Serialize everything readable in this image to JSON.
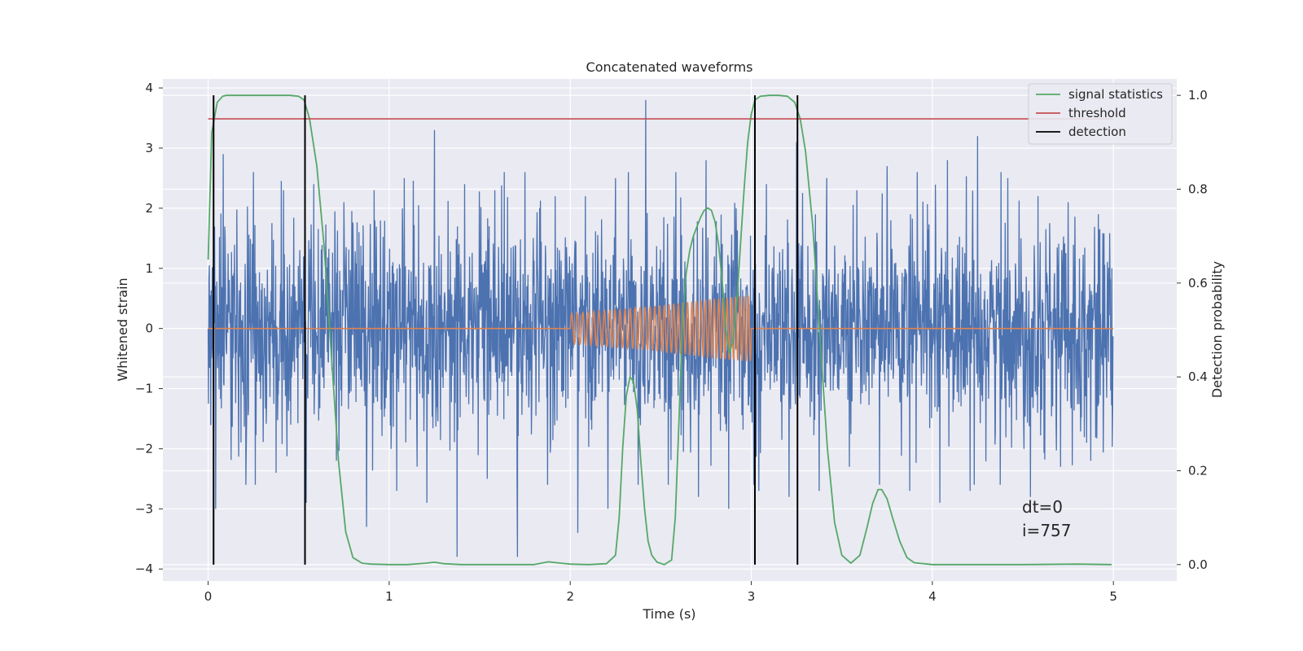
{
  "chart_data": {
    "type": "line",
    "title": "Concatenated waveforms",
    "xlabel": "Time (s)",
    "ylabel": "Whitened strain",
    "y2label": "Detection probability",
    "xlim": [
      -0.25,
      5.35
    ],
    "ylim": [
      -4.2,
      4.15
    ],
    "y2lim": [
      -0.035,
      1.035
    ],
    "x_ticks": [
      0,
      1,
      2,
      3,
      4,
      5
    ],
    "y_ticks": [
      -4,
      -3,
      -2,
      -1,
      0,
      1,
      2,
      3,
      4
    ],
    "y2_ticks": [
      0.0,
      0.2,
      0.4,
      0.6,
      0.8,
      1.0
    ],
    "y2_tick_labels": [
      "0.0",
      "0.2",
      "0.4",
      "0.6",
      "0.8",
      "1.0"
    ],
    "grid": true,
    "legend_position": "top-right",
    "series": [
      {
        "role": "strain",
        "color": "#4c72b0",
        "note": "whitened noise, time 0 to 5 s, amplitude roughly -3.5 to 3.8",
        "x_range": [
          0,
          5
        ],
        "peak_values": [
          2.9,
          2.6,
          2.3,
          2.4,
          2.1,
          2.3,
          2.5,
          3.3,
          2.4,
          2.3,
          2.6,
          2.2,
          2.2,
          2.5,
          3.8,
          2.6,
          2.8,
          2.0,
          2.4,
          3.1,
          2.5,
          2.3,
          2.7,
          2.6,
          2.8,
          3.2,
          2.5,
          2.2,
          2.1,
          1.9
        ],
        "trough_values": [
          -3.0,
          -2.6,
          -2.4,
          -2.9,
          -2.2,
          -3.3,
          -2.7,
          -2.9,
          -3.8,
          -2.5,
          -3.8,
          -2.6,
          -3.4,
          -3.0,
          -2.6,
          -2.6,
          -2.8,
          -3.0,
          -2.7,
          -2.8,
          -2.7,
          -2.3,
          -2.6,
          -2.7,
          -2.9,
          -2.7,
          -2.6,
          -2.8,
          -2.3,
          -2.2
        ]
      },
      {
        "role": "injected-signal",
        "color": "#dd8452",
        "note": "chirp between 2.0 and 3.0 s, zero elsewhere",
        "x": [
          0,
          2.0,
          2.2,
          2.4,
          2.6,
          2.8,
          3.0,
          3.01,
          5.0
        ],
        "amplitude": [
          0,
          0.25,
          0.3,
          0.35,
          0.42,
          0.5,
          0.55,
          0,
          0
        ]
      },
      {
        "name": "signal statistics",
        "color": "#55a868",
        "axis": "right",
        "x": [
          0.0,
          0.02,
          0.05,
          0.08,
          0.1,
          0.15,
          0.2,
          0.3,
          0.4,
          0.45,
          0.5,
          0.53,
          0.56,
          0.6,
          0.64,
          0.68,
          0.72,
          0.76,
          0.8,
          0.85,
          0.9,
          1.0,
          1.1,
          1.2,
          1.25,
          1.3,
          1.4,
          1.6,
          1.8,
          1.88,
          1.95,
          2.0,
          2.1,
          2.2,
          2.25,
          2.27,
          2.29,
          2.31,
          2.33,
          2.35,
          2.37,
          2.39,
          2.41,
          2.43,
          2.45,
          2.48,
          2.52,
          2.56,
          2.58,
          2.6,
          2.62,
          2.64,
          2.66,
          2.68,
          2.7,
          2.72,
          2.74,
          2.76,
          2.78,
          2.8,
          2.82,
          2.84,
          2.86,
          2.88,
          2.9,
          2.92,
          2.94,
          2.96,
          2.98,
          3.0,
          3.02,
          3.05,
          3.1,
          3.15,
          3.2,
          3.24,
          3.27,
          3.3,
          3.34,
          3.38,
          3.42,
          3.46,
          3.5,
          3.55,
          3.6,
          3.64,
          3.67,
          3.7,
          3.72,
          3.75,
          3.78,
          3.82,
          3.86,
          3.9,
          4.0,
          4.2,
          4.5,
          4.8,
          4.99
        ],
        "y": [
          0.65,
          0.92,
          0.985,
          0.998,
          1.0,
          1.0,
          1.0,
          1.0,
          1.0,
          1.0,
          0.998,
          0.99,
          0.95,
          0.85,
          0.68,
          0.45,
          0.22,
          0.07,
          0.015,
          0.003,
          0.001,
          0.0,
          0.0,
          0.003,
          0.005,
          0.002,
          0.0,
          0.0,
          0.0,
          0.006,
          0.003,
          0.001,
          0.0,
          0.002,
          0.02,
          0.1,
          0.25,
          0.36,
          0.4,
          0.39,
          0.33,
          0.22,
          0.12,
          0.05,
          0.02,
          0.005,
          0.0,
          0.01,
          0.1,
          0.3,
          0.52,
          0.62,
          0.67,
          0.7,
          0.72,
          0.74,
          0.755,
          0.76,
          0.755,
          0.73,
          0.68,
          0.6,
          0.5,
          0.45,
          0.48,
          0.56,
          0.68,
          0.8,
          0.9,
          0.96,
          0.99,
          0.998,
          1.0,
          1.0,
          0.998,
          0.985,
          0.95,
          0.88,
          0.72,
          0.48,
          0.25,
          0.09,
          0.02,
          0.003,
          0.02,
          0.08,
          0.13,
          0.16,
          0.16,
          0.14,
          0.1,
          0.05,
          0.015,
          0.004,
          0.0,
          0.0,
          0.0,
          0.001,
          0.0
        ]
      },
      {
        "name": "threshold",
        "color": "#c44e52",
        "axis": "right",
        "value": 0.95,
        "x_range": [
          0,
          5
        ]
      },
      {
        "name": "detection",
        "color": "#000000",
        "axis": "right",
        "x": [
          0.03,
          0.535,
          3.02,
          3.255
        ],
        "y_range": [
          0,
          1.0
        ]
      }
    ],
    "annotations": [
      "dt=0",
      "i=757"
    ]
  }
}
